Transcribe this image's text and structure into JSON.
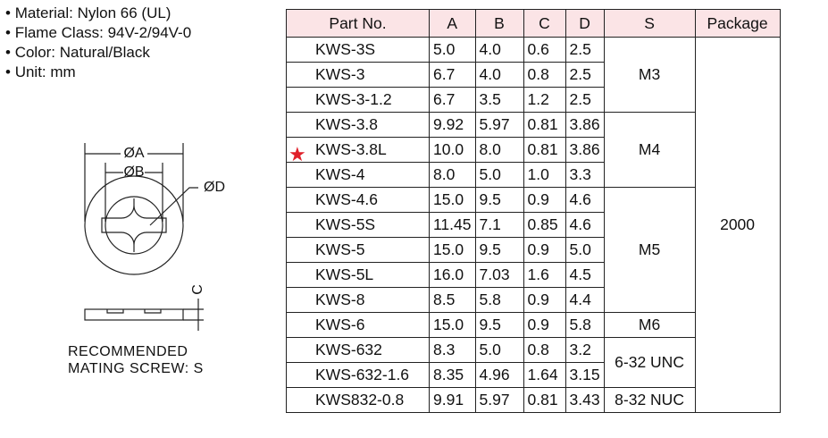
{
  "specs": [
    "Material: Nylon 66 (UL)",
    "Flame Class: 94V-2/94V-0",
    "Color: Natural/Black",
    "Unit: mm"
  ],
  "diagram": {
    "a": "ØA",
    "b": "ØB",
    "d": "ØD",
    "c": "C"
  },
  "caption": [
    "RECOMMENDED",
    "MATING  SCREW: S"
  ],
  "table": {
    "header": [
      "Part No.",
      "A",
      "B",
      "C",
      "D",
      "S",
      "Package"
    ],
    "rows": [
      [
        "KWS-3S",
        "5.0",
        "4.0",
        "0.6",
        "2.5",
        "M3"
      ],
      [
        "KWS-3",
        "6.7",
        "4.0",
        "0.8",
        "2.5",
        null
      ],
      [
        "KWS-3-1.2",
        "6.7",
        "3.5",
        "1.2",
        "2.5",
        null
      ],
      [
        "KWS-3.8",
        "9.92",
        "5.97",
        "0.81",
        "3.86",
        "M4"
      ],
      [
        "KWS-3.8L",
        "10.0",
        "8.0",
        "0.81",
        "3.86",
        null
      ],
      [
        "KWS-4",
        "8.0",
        "5.0",
        "1.0",
        "3.3",
        null
      ],
      [
        "KWS-4.6",
        "15.0",
        "9.5",
        "0.9",
        "4.6",
        "M5"
      ],
      [
        "KWS-5S",
        "11.45",
        "7.1",
        "0.85",
        "4.6",
        null
      ],
      [
        "KWS-5",
        "15.0",
        "9.5",
        "0.9",
        "5.0",
        null
      ],
      [
        "KWS-5L",
        "16.0",
        "7.03",
        "1.6",
        "4.5",
        null
      ],
      [
        "KWS-8",
        "8.5",
        "5.8",
        "0.9",
        "4.4",
        null
      ],
      [
        "KWS-6",
        "15.0",
        "9.5",
        "0.9",
        "5.8",
        "M6"
      ],
      [
        "KWS-632",
        "8.3",
        "5.0",
        "0.8",
        "3.2",
        "6-32 UNC"
      ],
      [
        "KWS-632-1.6",
        "8.35",
        "4.96",
        "1.64",
        "3.15",
        null
      ],
      [
        "KWS832-0.8",
        "9.91",
        "5.97",
        "0.81",
        "3.43",
        "8-32 NUC"
      ]
    ],
    "package": "2000"
  }
}
